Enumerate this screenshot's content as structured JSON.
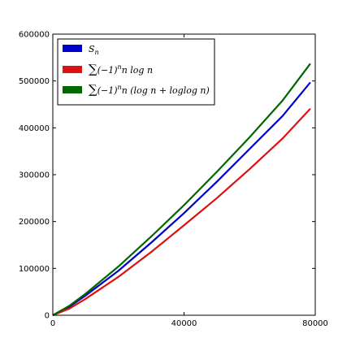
{
  "chart_data": {
    "type": "line",
    "xlim": [
      0,
      80000
    ],
    "ylim": [
      0,
      600000
    ],
    "x_ticks": [
      "0",
      "40000",
      "80000"
    ],
    "y_ticks": [
      "0",
      "100000",
      "200000",
      "300000",
      "400000",
      "500000",
      "600000"
    ],
    "grid": false,
    "legend_placement": "top-left",
    "series": [
      {
        "name": "S_n",
        "color": "#0000cc",
        "points": [
          [
            0,
            0
          ],
          [
            5000,
            18000
          ],
          [
            10000,
            42000
          ],
          [
            20000,
            95000
          ],
          [
            30000,
            155000
          ],
          [
            40000,
            218000
          ],
          [
            50000,
            285000
          ],
          [
            60000,
            355000
          ],
          [
            70000,
            425000
          ],
          [
            78500,
            497000
          ]
        ]
      },
      {
        "name": "∑(−1)ⁿn log n",
        "color": "#dd1111",
        "points": [
          [
            0,
            0
          ],
          [
            5000,
            14000
          ],
          [
            10000,
            35000
          ],
          [
            20000,
            82000
          ],
          [
            30000,
            135000
          ],
          [
            40000,
            192000
          ],
          [
            50000,
            250000
          ],
          [
            60000,
            312000
          ],
          [
            70000,
            377000
          ],
          [
            78500,
            441000
          ]
        ]
      },
      {
        "name": "∑(−1)ⁿn (log n + loglog n)",
        "color": "#006600",
        "points": [
          [
            0,
            0
          ],
          [
            5000,
            20000
          ],
          [
            10000,
            46000
          ],
          [
            20000,
            104000
          ],
          [
            30000,
            168000
          ],
          [
            40000,
            235000
          ],
          [
            50000,
            306000
          ],
          [
            60000,
            380000
          ],
          [
            70000,
            458000
          ],
          [
            78500,
            537000
          ]
        ]
      }
    ]
  }
}
